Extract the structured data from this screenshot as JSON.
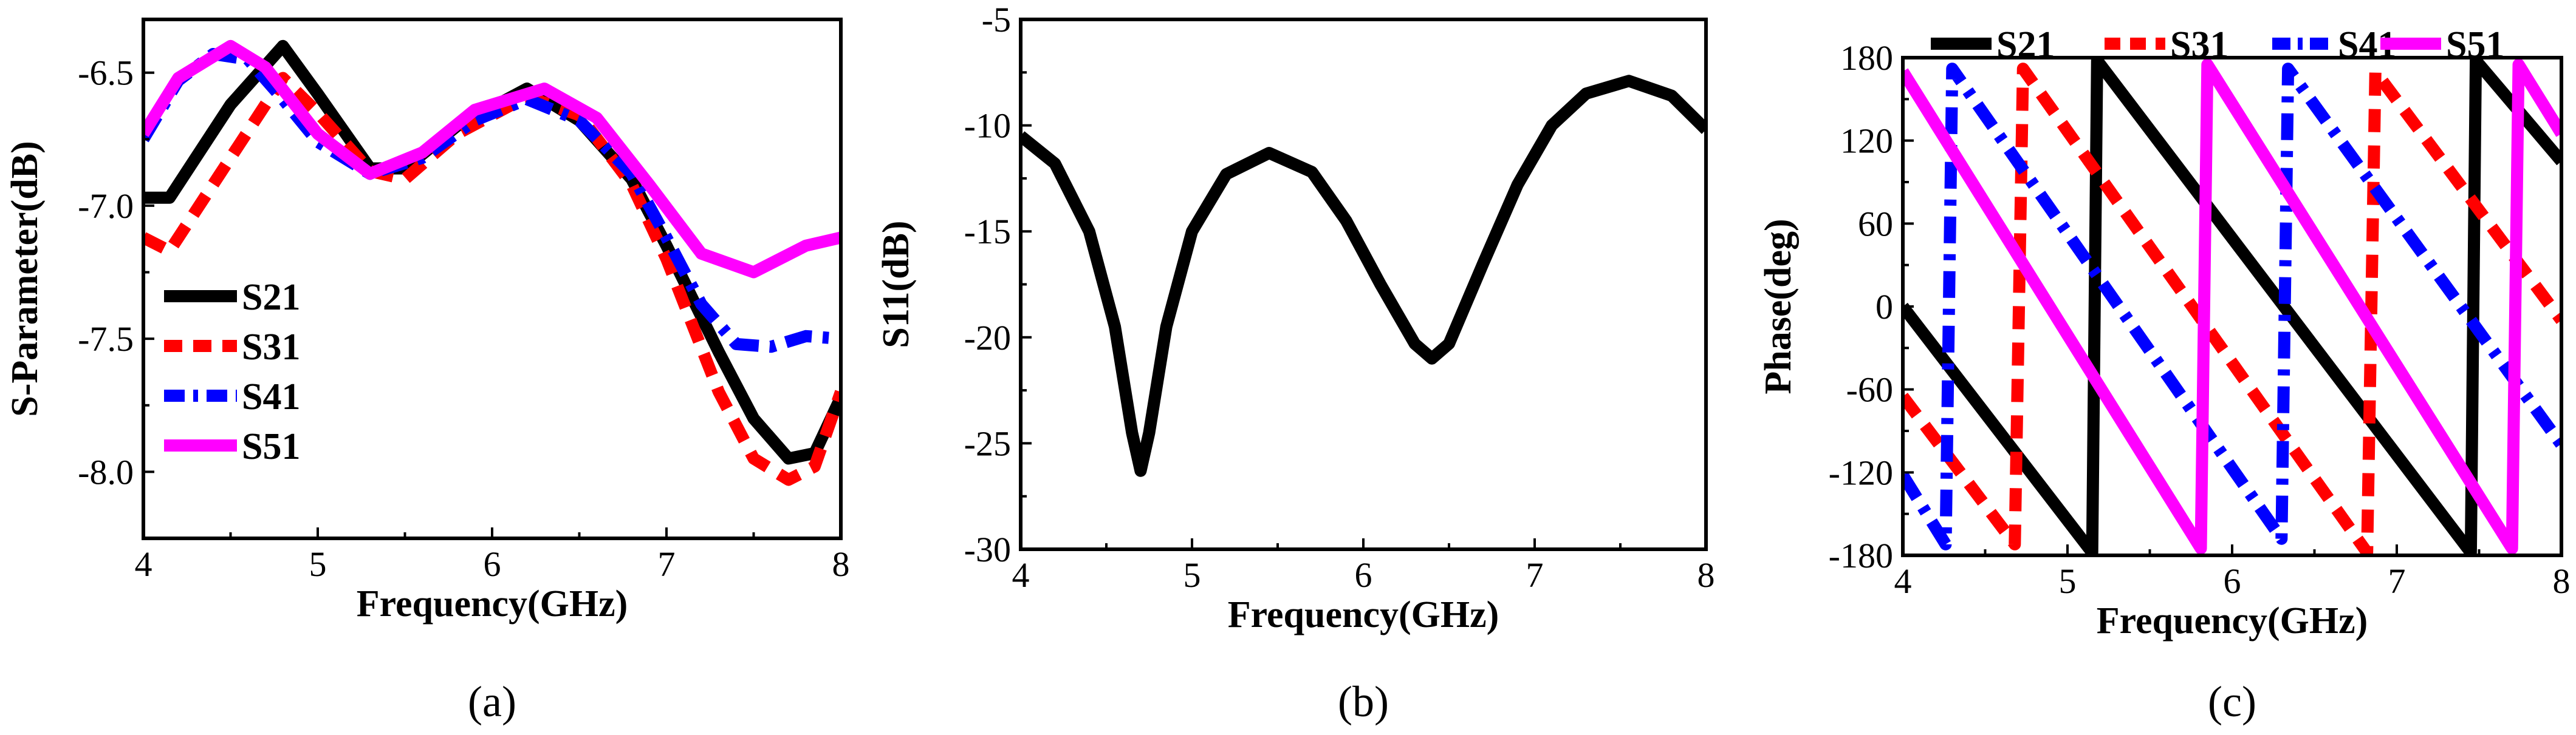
{
  "colors": {
    "S21": "#000000",
    "S31": "#ff0000",
    "S41": "#0000ff",
    "S51": "#ff00ff"
  },
  "chart_data": [
    {
      "panel": "a",
      "type": "line",
      "caption": "(a)",
      "xlabel": "Frequency(GHz)",
      "ylabel": "S-Parameter(dB)",
      "xlim": [
        4,
        8
      ],
      "ylim": [
        -8.25,
        -6.3
      ],
      "xticks": [
        4,
        5,
        6,
        7,
        8
      ],
      "yticks": [
        -8.0,
        -7.5,
        -7.0,
        -6.5
      ],
      "legend": "lower-left",
      "series": [
        {
          "name": "S21",
          "style": "solid",
          "x": [
            4.0,
            4.15,
            4.5,
            4.8,
            5.0,
            5.3,
            5.5,
            5.8,
            6.2,
            6.5,
            6.8,
            7.0,
            7.3,
            7.5,
            7.7,
            7.85,
            8.0
          ],
          "y": [
            -6.97,
            -6.97,
            -6.62,
            -6.4,
            -6.58,
            -6.86,
            -6.86,
            -6.7,
            -6.56,
            -6.68,
            -6.9,
            -7.15,
            -7.55,
            -7.8,
            -7.95,
            -7.93,
            -7.72
          ]
        },
        {
          "name": "S31",
          "style": "dash",
          "x": [
            4.0,
            4.15,
            4.5,
            4.8,
            5.0,
            5.3,
            5.5,
            5.8,
            6.2,
            6.5,
            6.8,
            7.0,
            7.3,
            7.5,
            7.7,
            7.85,
            8.0
          ],
          "y": [
            -7.12,
            -7.17,
            -6.82,
            -6.52,
            -6.65,
            -6.87,
            -6.9,
            -6.73,
            -6.59,
            -6.66,
            -6.92,
            -7.2,
            -7.7,
            -7.95,
            -8.03,
            -7.98,
            -7.7
          ]
        },
        {
          "name": "S41",
          "style": "dashdot",
          "x": [
            4.0,
            4.2,
            4.4,
            4.6,
            4.8,
            5.0,
            5.3,
            5.6,
            5.9,
            6.2,
            6.5,
            6.8,
            7.0,
            7.2,
            7.4,
            7.6,
            7.8,
            8.0
          ],
          "y": [
            -6.75,
            -6.53,
            -6.43,
            -6.45,
            -6.6,
            -6.76,
            -6.88,
            -6.82,
            -6.68,
            -6.6,
            -6.68,
            -6.88,
            -7.12,
            -7.37,
            -7.52,
            -7.53,
            -7.49,
            -7.5
          ]
        },
        {
          "name": "S51",
          "style": "solid",
          "x": [
            4.0,
            4.2,
            4.5,
            4.7,
            5.0,
            5.3,
            5.6,
            5.9,
            6.3,
            6.6,
            6.9,
            7.2,
            7.5,
            7.8,
            8.0
          ],
          "y": [
            -6.73,
            -6.52,
            -6.4,
            -6.48,
            -6.73,
            -6.88,
            -6.8,
            -6.64,
            -6.56,
            -6.67,
            -6.92,
            -7.18,
            -7.25,
            -7.15,
            -7.12
          ]
        }
      ]
    },
    {
      "panel": "b",
      "type": "line",
      "caption": "(b)",
      "xlabel": "Frequency(GHz)",
      "ylabel": "S11(dB)",
      "xlim": [
        4,
        8
      ],
      "ylim": [
        -30,
        -5
      ],
      "xticks": [
        4,
        5,
        6,
        7,
        8
      ],
      "yticks": [
        -30,
        -25,
        -20,
        -15,
        -10,
        -5
      ],
      "series": [
        {
          "style": "solid",
          "x": [
            4.0,
            4.2,
            4.4,
            4.55,
            4.65,
            4.7,
            4.75,
            4.85,
            5.0,
            5.2,
            5.45,
            5.7,
            5.9,
            6.1,
            6.3,
            6.4,
            6.5,
            6.7,
            6.9,
            7.1,
            7.3,
            7.55,
            7.8,
            8.0
          ],
          "y": [
            -10.5,
            -11.8,
            -15.0,
            -19.5,
            -24.5,
            -26.3,
            -24.5,
            -19.5,
            -15.0,
            -12.3,
            -11.3,
            -12.2,
            -14.5,
            -17.5,
            -20.3,
            -21.0,
            -20.3,
            -16.5,
            -12.8,
            -10.0,
            -8.5,
            -7.9,
            -8.6,
            -10.2
          ]
        }
      ]
    },
    {
      "panel": "c",
      "type": "line",
      "caption": "(c)",
      "xlabel": "Frequency(GHz)",
      "ylabel": "Phase(deg)",
      "xlim": [
        4,
        8
      ],
      "ylim": [
        -180,
        180
      ],
      "xticks": [
        4,
        5,
        6,
        7,
        8
      ],
      "yticks": [
        -180,
        -120,
        -60,
        0,
        60,
        120,
        180
      ],
      "legend": "top",
      "series": [
        {
          "name": "S21",
          "style": "solid",
          "x": [
            4.0,
            5.15,
            5.18,
            7.45,
            7.48,
            8.0
          ],
          "y": [
            0,
            -178,
            178,
            -178,
            178,
            105
          ]
        },
        {
          "name": "S31",
          "style": "dash",
          "x": [
            4.0,
            4.68,
            4.73,
            6.82,
            6.87,
            8.0
          ],
          "y": [
            -65,
            -172,
            172,
            -178,
            170,
            -10
          ]
        },
        {
          "name": "S41",
          "style": "dashdot",
          "x": [
            4.0,
            4.26,
            4.3,
            6.3,
            6.34,
            8.0
          ],
          "y": [
            -122,
            -172,
            172,
            -168,
            172,
            -100
          ]
        },
        {
          "name": "S51",
          "style": "solid",
          "x": [
            4.0,
            5.81,
            5.85,
            7.7,
            7.74,
            8.0
          ],
          "y": [
            170,
            -175,
            175,
            -175,
            175,
            125
          ]
        }
      ]
    }
  ]
}
